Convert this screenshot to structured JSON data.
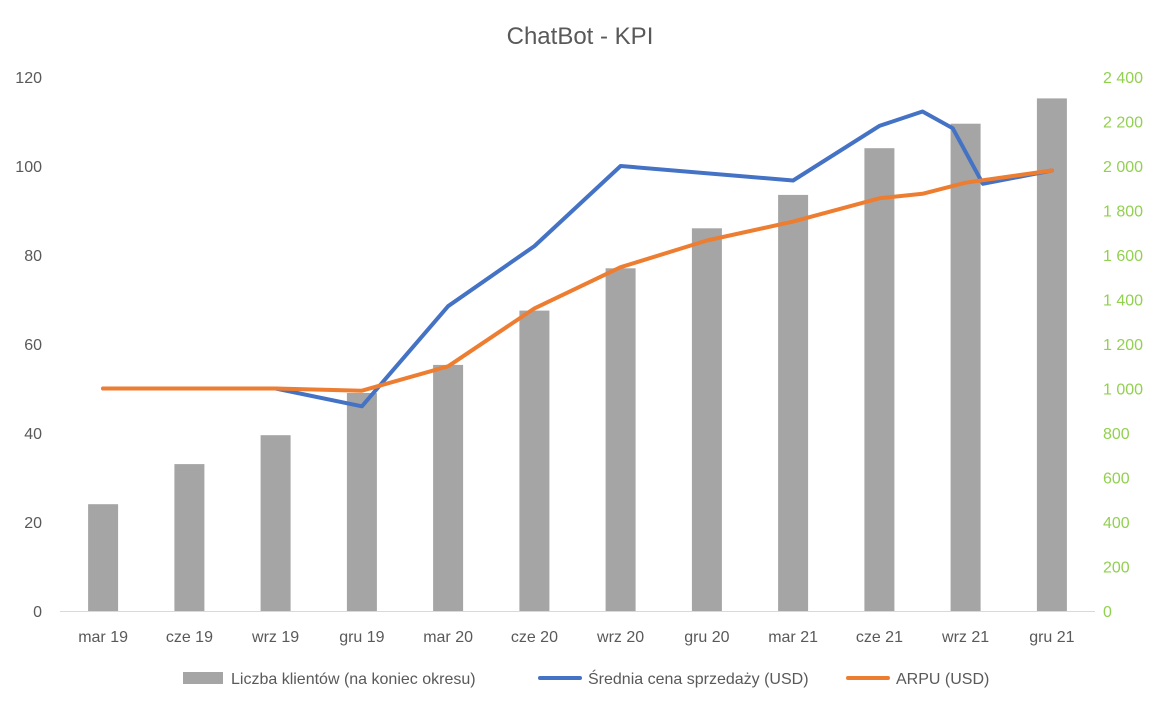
{
  "chart_data": {
    "type": "bar",
    "title": "ChatBot - KPI",
    "categories": [
      "mar 19",
      "cze 19",
      "wrz 19",
      "gru 19",
      "mar 20",
      "cze 20",
      "wrz 20",
      "gru 20",
      "mar 21",
      "cze 21",
      "wrz 21",
      "gru 21"
    ],
    "y_left": {
      "min": 0,
      "max": 120,
      "step": 20,
      "ticks": [
        "0",
        "20",
        "40",
        "60",
        "80",
        "100",
        "120"
      ]
    },
    "y_right": {
      "min": 0,
      "max": 2400,
      "step": 200,
      "ticks": [
        "0",
        "200",
        "400",
        "600",
        "800",
        "1 000",
        "1 200",
        "1 400",
        "1 600",
        "1 800",
        "2 000",
        "2 200",
        "2 400"
      ]
    },
    "grid": false,
    "legend_position": "bottom",
    "series": [
      {
        "name": "Liczba klientów (na koniec okresu)",
        "type": "bar",
        "axis": "left",
        "color": "#A5A5A5",
        "values": [
          24,
          33,
          39.5,
          49,
          55.3,
          67.5,
          77,
          86,
          93.5,
          104,
          109.5,
          115.2
        ]
      },
      {
        "name": "Średnia cena sprzedaży (USD)",
        "type": "line",
        "axis": "right",
        "color": "#4472C4",
        "points": [
          {
            "x": 0,
            "y": 1000
          },
          {
            "x": 2,
            "y": 1000
          },
          {
            "x": 3,
            "y": 920
          },
          {
            "x": 4,
            "y": 1370
          },
          {
            "x": 5,
            "y": 1640
          },
          {
            "x": 6,
            "y": 2000
          },
          {
            "x": 8,
            "y": 1935
          },
          {
            "x": 9,
            "y": 2180
          },
          {
            "x": 9.5,
            "y": 2245
          },
          {
            "x": 9.85,
            "y": 2170
          },
          {
            "x": 10.2,
            "y": 1920
          },
          {
            "x": 11,
            "y": 1980
          }
        ]
      },
      {
        "name": "ARPU (USD)",
        "type": "line",
        "axis": "right",
        "color": "#ED7D31",
        "points": [
          {
            "x": 0,
            "y": 1000
          },
          {
            "x": 1,
            "y": 1000
          },
          {
            "x": 2,
            "y": 1000
          },
          {
            "x": 3,
            "y": 990
          },
          {
            "x": 4,
            "y": 1100
          },
          {
            "x": 5,
            "y": 1360
          },
          {
            "x": 6,
            "y": 1545
          },
          {
            "x": 7,
            "y": 1665
          },
          {
            "x": 8,
            "y": 1750
          },
          {
            "x": 9,
            "y": 1855
          },
          {
            "x": 9.5,
            "y": 1875
          },
          {
            "x": 10,
            "y": 1925
          },
          {
            "x": 11,
            "y": 1980
          }
        ]
      }
    ]
  }
}
